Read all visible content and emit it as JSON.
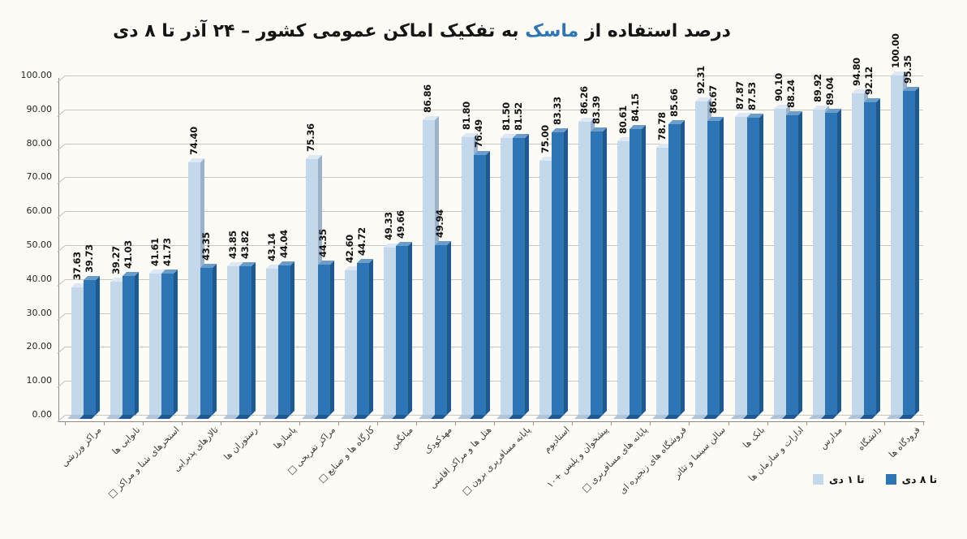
{
  "title": {
    "prefix": "درصد استفاده از",
    "highlight": "ماسک",
    "suffix": "به تفکیک اماکن عمومی کشور  – ۲۴ آذر تا ۸ دی",
    "highlight_color": "#2E75B6"
  },
  "y_axis": {
    "ticks": [
      "100.00",
      "90.00",
      "80.00",
      "70.00",
      "60.00",
      "50.00",
      "40.00",
      "30.00",
      "20.00",
      "10.00",
      "0.00"
    ],
    "min": 0,
    "max": 100,
    "step": 10
  },
  "legend": [
    {
      "label": "تا ۱ دی",
      "color": "#C4D8EC",
      "series": "light"
    },
    {
      "label": "تا ۸ دی",
      "color": "#2E75B5",
      "series": "dark"
    }
  ],
  "chart_data": {
    "type": "bar",
    "title": "درصد استفاده از ماسک به تفکیک اماکن عمومی کشور – ۲۴ آذر تا ۸ دی",
    "xlabel": "",
    "ylabel": "",
    "ylim": [
      0,
      100
    ],
    "grid": true,
    "legend_position": "bottom-right",
    "style": "3d-clustered-column",
    "categories": [
      "مراکز ورزشی",
      "نانوایی ها",
      "استخرهای شنا و مراکز □",
      "تالارهای پذیرایی",
      "رستوران ها",
      "پاساژها",
      "مراکز تفریحی □",
      "کارگاه ها و صنایع □",
      "میانگین",
      "مهدکودک",
      "هتل ها و مراکز اقامتی",
      "پایانه مسافربری برون □",
      "استادیوم",
      "پیشخوان و پلیس +۱۰",
      "پایانه های مسافربری □",
      "فروشگاه های زنجیره ای",
      "سالن سینما و تئاتر",
      "بانک ها",
      "ادارات و سازمان ها",
      "مدارس",
      "دانشگاه",
      "فرودگاه ها"
    ],
    "series": [
      {
        "name": "تا ۱ دی",
        "color": "#C4D8EC",
        "values": [
          37.63,
          39.27,
          41.61,
          74.4,
          43.85,
          43.14,
          75.36,
          42.6,
          49.33,
          86.86,
          81.8,
          81.5,
          75.0,
          86.26,
          80.61,
          78.78,
          92.31,
          87.87,
          90.1,
          89.92,
          94.8,
          100.0
        ]
      },
      {
        "name": "تا ۸ دی",
        "color": "#2E75B5",
        "values": [
          39.73,
          41.03,
          41.73,
          43.35,
          43.82,
          44.04,
          44.35,
          44.72,
          49.66,
          49.94,
          76.49,
          81.52,
          83.33,
          83.39,
          84.15,
          85.66,
          86.67,
          87.53,
          88.24,
          89.04,
          92.12,
          95.35
        ]
      }
    ]
  }
}
